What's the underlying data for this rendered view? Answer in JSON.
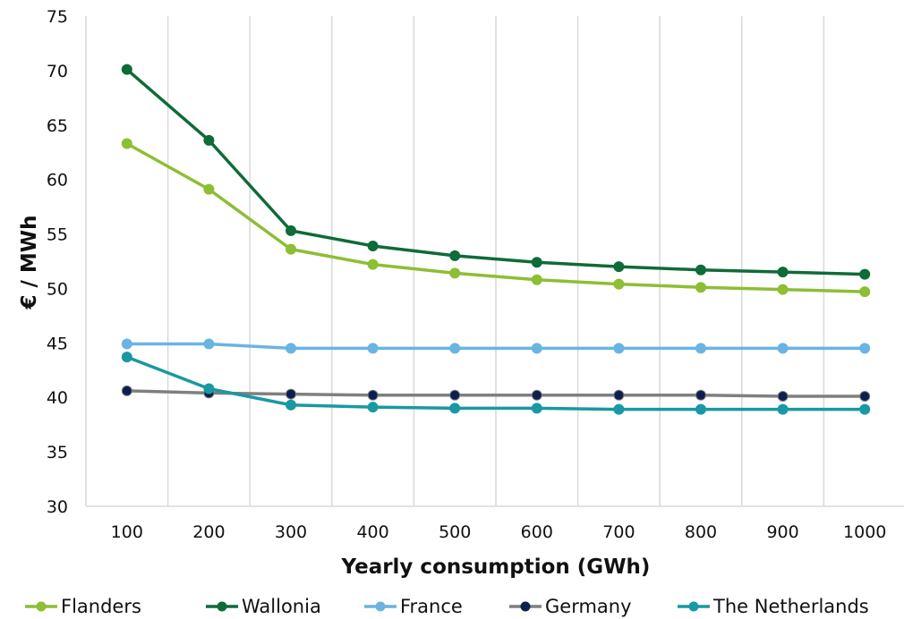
{
  "chart_data": {
    "type": "line",
    "xlabel": "Yearly consumption (GWh)",
    "ylabel": "€ / MWh",
    "x": [
      100,
      200,
      300,
      400,
      500,
      600,
      700,
      800,
      900,
      1000
    ],
    "x_tick_labels": [
      "100",
      "200",
      "300",
      "400",
      "500",
      "600",
      "700",
      "800",
      "900",
      "1000"
    ],
    "ylim": [
      30,
      75
    ],
    "y_ticks": [
      30,
      35,
      40,
      45,
      50,
      55,
      60,
      65,
      70,
      75
    ],
    "y_tick_labels": [
      "30",
      "35",
      "40",
      "45",
      "50",
      "55",
      "60",
      "65",
      "70",
      "75"
    ],
    "grid": "vertical",
    "legend_position": "bottom",
    "series": [
      {
        "name": "Flanders",
        "color": "#8dbe34",
        "marker_color": "#8dbe34",
        "values": [
          63.3,
          59.1,
          53.6,
          52.2,
          51.4,
          50.8,
          50.4,
          50.1,
          49.9,
          49.7
        ]
      },
      {
        "name": "Wallonia",
        "color": "#0f6b37",
        "marker_color": "#0f6b37",
        "values": [
          70.1,
          63.6,
          55.3,
          53.9,
          53.0,
          52.4,
          52.0,
          51.7,
          51.5,
          51.3
        ]
      },
      {
        "name": "France",
        "color": "#6ab4e2",
        "marker_color": "#6ab4e2",
        "values": [
          44.9,
          44.9,
          44.5,
          44.5,
          44.5,
          44.5,
          44.5,
          44.5,
          44.5,
          44.5
        ]
      },
      {
        "name": "Germany",
        "color": "#7f7f7f",
        "marker_color": "#0d1f4f",
        "values": [
          40.6,
          40.4,
          40.3,
          40.2,
          40.2,
          40.2,
          40.2,
          40.2,
          40.1,
          40.1
        ]
      },
      {
        "name": "The Netherlands",
        "color": "#1899a3",
        "marker_color": "#1899a3",
        "values": [
          43.7,
          40.8,
          39.3,
          39.1,
          39.0,
          39.0,
          38.9,
          38.9,
          38.9,
          38.9
        ]
      }
    ]
  }
}
